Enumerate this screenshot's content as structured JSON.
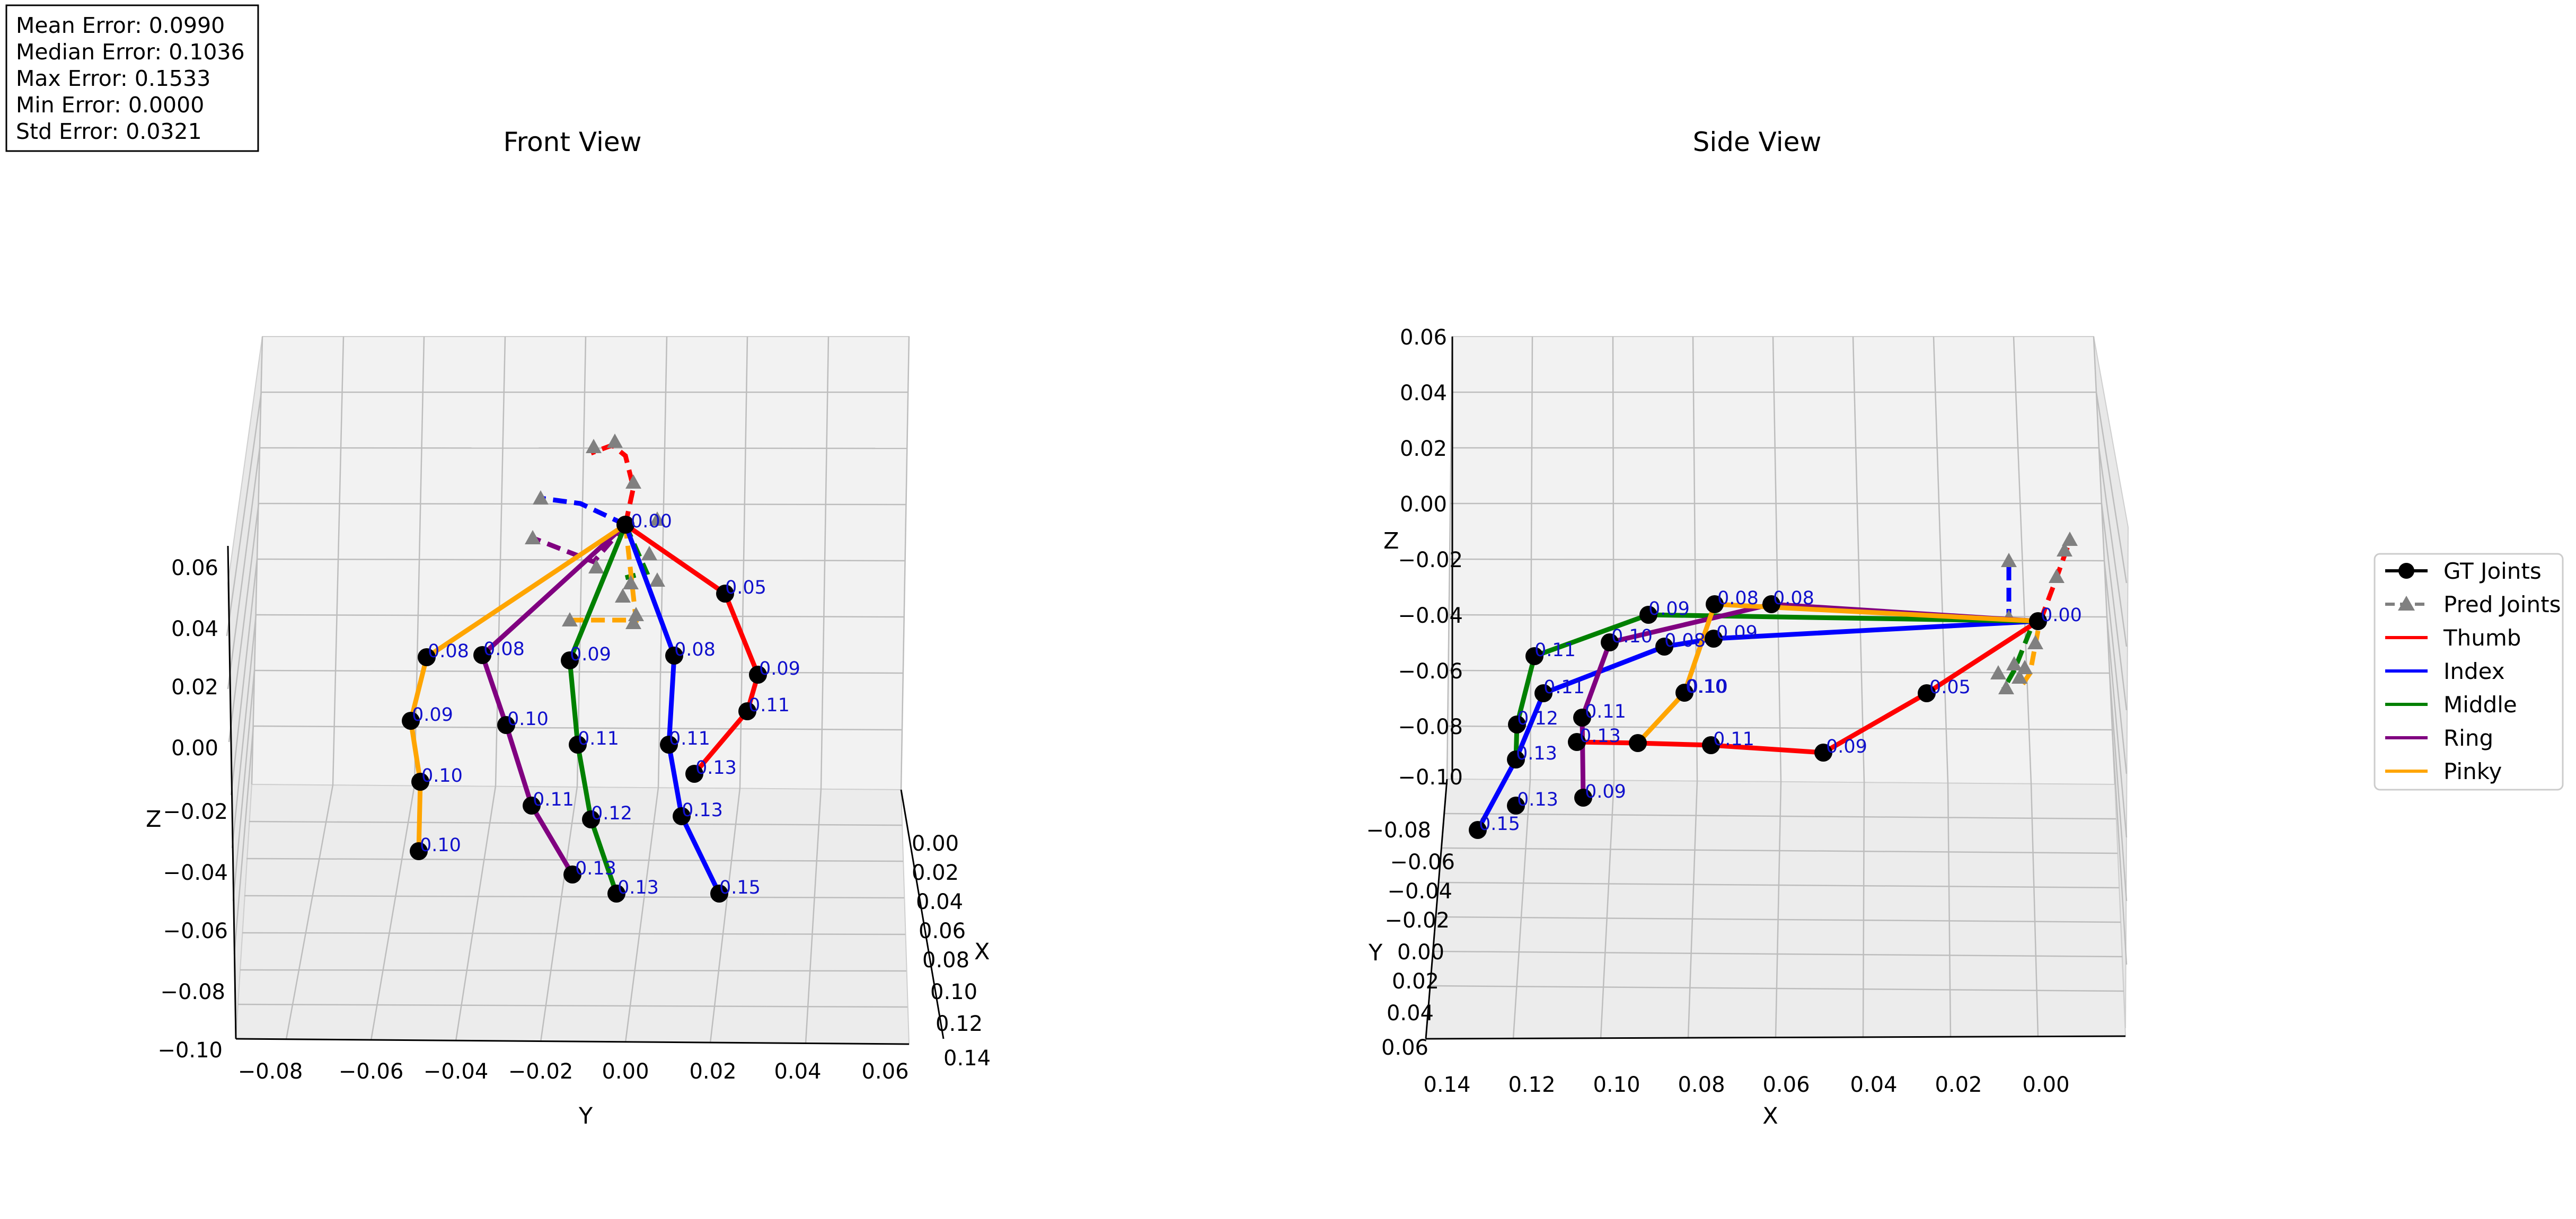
{
  "stats": [
    "Mean Error: 0.0990",
    "Median Error: 0.1036",
    "Max Error: 0.1533",
    "Min Error: 0.0000",
    "Std Error: 0.0321"
  ],
  "colors": {
    "thumb": "#ff0000",
    "index": "#0000ff",
    "middle": "#008000",
    "ring": "#800080",
    "pinky": "#ffa500",
    "gt_joint": "#000000",
    "pred_joint": "#808080",
    "error_label": "#1010cc"
  },
  "legend": {
    "gt": "GT Joints",
    "pred": "Pred Joints",
    "fingers": [
      "Thumb",
      "Index",
      "Middle",
      "Ring",
      "Pinky"
    ],
    "placement": "right"
  },
  "chart_data": [
    {
      "type": "scatter",
      "title": "Front View",
      "xlabel": "Y",
      "ylabel": "Z",
      "depth_label": "X",
      "x_ticks": [
        "−0.08",
        "−0.06",
        "−0.04",
        "−0.02",
        "0.00",
        "0.02",
        "0.04",
        "0.06"
      ],
      "z_ticks": [
        "−0.10",
        "−0.08",
        "−0.06",
        "−0.04",
        "−0.02",
        "0.00",
        "0.02",
        "0.04",
        "0.06"
      ],
      "depth_ticks": [
        "0.00",
        "0.02",
        "0.04",
        "0.06",
        "0.08",
        "0.10",
        "0.12",
        "0.14"
      ],
      "ylim": [
        -0.1,
        0.06
      ],
      "xlim": [
        -0.08,
        0.06
      ],
      "grid": true,
      "error_labels": [
        "0.00",
        "0.05",
        "0.09",
        "0.11",
        "0.13",
        "0.08",
        "0.11",
        "0.13",
        "0.15",
        "0.09",
        "0.11",
        "0.12",
        "0.13",
        "0.08",
        "0.10",
        "0.11",
        "0.13",
        "0.08",
        "0.09",
        "0.10",
        "0.10"
      ]
    },
    {
      "type": "scatter",
      "title": "Side View",
      "xlabel": "X",
      "ylabel": "Z",
      "depth_label": "Y",
      "x_ticks": [
        "0.14",
        "0.12",
        "0.10",
        "0.08",
        "0.06",
        "0.04",
        "0.02",
        "0.00"
      ],
      "z_ticks": [
        "0.06",
        "0.04",
        "0.02",
        "0.00",
        "−0.02",
        "−0.04",
        "−0.06",
        "−0.08",
        "−0.10"
      ],
      "depth_ticks": [
        "−0.08",
        "−0.06",
        "−0.04",
        "−0.02",
        "0.00",
        "0.02",
        "0.04",
        "0.06"
      ],
      "ylim": [
        -0.1,
        0.06
      ],
      "xlim": [
        0.14,
        0.0
      ],
      "grid": true,
      "error_labels": [
        "0.00",
        "0.05",
        "0.09",
        "0.11",
        "0.10",
        "0.08",
        "0.09",
        "0.11",
        "0.13",
        "0.15",
        "0.09",
        "0.11",
        "0.12",
        "0.13",
        "0.10",
        "0.11",
        "0.13",
        "0.08",
        "0.08",
        "0.09",
        "0.10"
      ]
    }
  ]
}
